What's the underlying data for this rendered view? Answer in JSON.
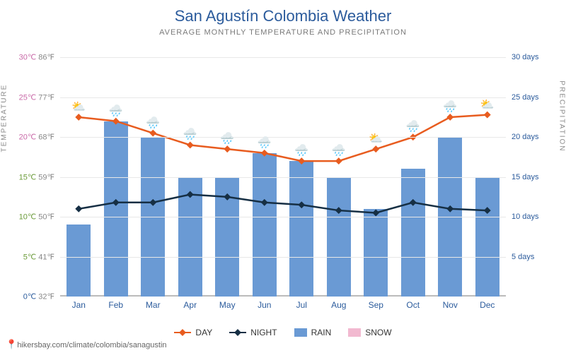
{
  "title": "San Agustín Colombia Weather",
  "subtitle": "AVERAGE MONTHLY TEMPERATURE AND PRECIPITATION",
  "footer_url": "hikersbay.com/climate/colombia/sanagustin",
  "yaxis_left": {
    "label": "TEMPERATURE",
    "min": 0,
    "max": 31,
    "ticks": [
      {
        "v": 0,
        "c": "0℃",
        "f": "32℉",
        "color": "#2b5b9c"
      },
      {
        "v": 5,
        "c": "5℃",
        "f": "41℉",
        "color": "#6b9b3a"
      },
      {
        "v": 10,
        "c": "10℃",
        "f": "50℉",
        "color": "#6b9b3a"
      },
      {
        "v": 15,
        "c": "15℃",
        "f": "59℉",
        "color": "#6b9b3a"
      },
      {
        "v": 20,
        "c": "20℃",
        "f": "68℉",
        "color": "#c96aa8"
      },
      {
        "v": 25,
        "c": "25℃",
        "f": "77℉",
        "color": "#c96aa8"
      },
      {
        "v": 30,
        "c": "30℃",
        "f": "86℉",
        "color": "#c96aa8"
      }
    ]
  },
  "yaxis_right": {
    "label": "PRECIPITATION",
    "min": 0,
    "max": 31,
    "ticks": [
      {
        "v": 5,
        "label": "5 days"
      },
      {
        "v": 10,
        "label": "10 days"
      },
      {
        "v": 15,
        "label": "15 days"
      },
      {
        "v": 20,
        "label": "20 days"
      },
      {
        "v": 25,
        "label": "25 days"
      },
      {
        "v": 30,
        "label": "30 days"
      }
    ]
  },
  "months": [
    "Jan",
    "Feb",
    "Mar",
    "Apr",
    "May",
    "Jun",
    "Jul",
    "Aug",
    "Sep",
    "Oct",
    "Nov",
    "Dec"
  ],
  "series": {
    "day": {
      "color": "#e85c1f",
      "values": [
        22.5,
        22,
        20.5,
        19,
        18.5,
        18,
        17,
        17,
        18.5,
        20,
        22.5,
        22.8
      ],
      "icons": [
        "⛅",
        "🌧️",
        "🌧️",
        "🌧️",
        "🌧️",
        "🌧️",
        "🌧️",
        "🌧️",
        "⛅",
        "🌧️",
        "🌧️",
        "⛅"
      ]
    },
    "night": {
      "color": "#162f44",
      "values": [
        11,
        11.8,
        11.8,
        12.8,
        12.5,
        11.8,
        11.5,
        10.8,
        10.5,
        11.8,
        11,
        10.8
      ]
    },
    "rain": {
      "color": "#6a9ad4",
      "values": [
        9,
        22,
        20,
        15,
        15,
        18,
        17,
        15,
        11,
        16,
        20,
        15
      ]
    },
    "snow": {
      "color": "#f2b9d0",
      "values": [
        0,
        0,
        0,
        0,
        0,
        0,
        0,
        0,
        0,
        0,
        0,
        0
      ]
    }
  },
  "legend": [
    {
      "key": "day",
      "label": "DAY",
      "type": "line"
    },
    {
      "key": "night",
      "label": "NIGHT",
      "type": "line"
    },
    {
      "key": "rain",
      "label": "RAIN",
      "type": "box"
    },
    {
      "key": "snow",
      "label": "SNOW",
      "type": "box"
    }
  ]
}
